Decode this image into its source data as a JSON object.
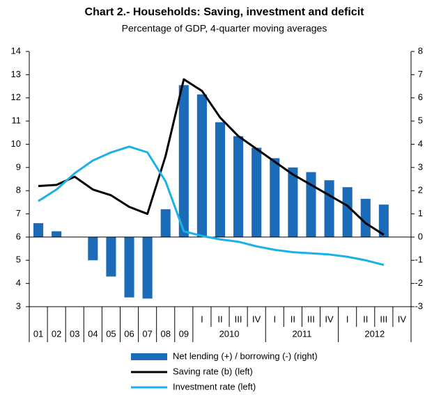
{
  "chart_data": {
    "type": "combo",
    "title": "Chart 2.- Households: Saving, investment and deficit",
    "subtitle": "Percentage of GDP, 4-quarter moving averages",
    "categories": [
      "01",
      "02",
      "03",
      "04",
      "05",
      "06",
      "07",
      "08",
      "09",
      "I",
      "II",
      "III",
      "IV",
      "I",
      "II",
      "III",
      "IV",
      "I",
      "II",
      "III",
      "IV"
    ],
    "groups": [
      {
        "label": "2010",
        "start": 9,
        "end": 12
      },
      {
        "label": "2011",
        "start": 13,
        "end": 16
      },
      {
        "label": "2012",
        "start": 17,
        "end": 20
      }
    ],
    "ylim": [
      3,
      14
    ],
    "yticks": [
      3,
      4,
      5,
      6,
      7,
      8,
      9,
      10,
      11,
      12,
      13,
      14
    ],
    "y2lim": [
      -3,
      8
    ],
    "y2ticks": [
      -3,
      -2,
      -1,
      0,
      1,
      2,
      3,
      4,
      5,
      6,
      7,
      8
    ],
    "legend": "bottom",
    "series": [
      {
        "name": "Net lending (+) / borrowing (-) (right)",
        "type": "bar",
        "axis": "y2",
        "color": "#1b6bb8",
        "values": [
          0.6,
          0.25,
          0,
          -1.0,
          -1.7,
          -2.6,
          -2.65,
          1.2,
          6.55,
          6.15,
          4.95,
          4.35,
          3.85,
          3.4,
          3.0,
          2.8,
          2.45,
          2.15,
          1.65,
          1.4,
          null
        ]
      },
      {
        "name": "Saving rate (b) (left)",
        "type": "line",
        "color": "#000000",
        "values": [
          8.2,
          8.25,
          8.6,
          8.05,
          7.8,
          7.3,
          7.0,
          9.5,
          12.8,
          12.3,
          11.15,
          10.35,
          9.8,
          9.25,
          8.7,
          8.25,
          7.8,
          7.35,
          6.6,
          6.1,
          null
        ]
      },
      {
        "name": "Investment rate (left)",
        "type": "line",
        "color": "#1ab0e8",
        "values": [
          7.55,
          8.05,
          8.75,
          9.3,
          9.65,
          9.9,
          9.65,
          8.4,
          6.25,
          6.05,
          5.9,
          5.8,
          5.6,
          5.45,
          5.35,
          5.3,
          5.25,
          5.15,
          5.0,
          4.8,
          null
        ]
      }
    ]
  }
}
